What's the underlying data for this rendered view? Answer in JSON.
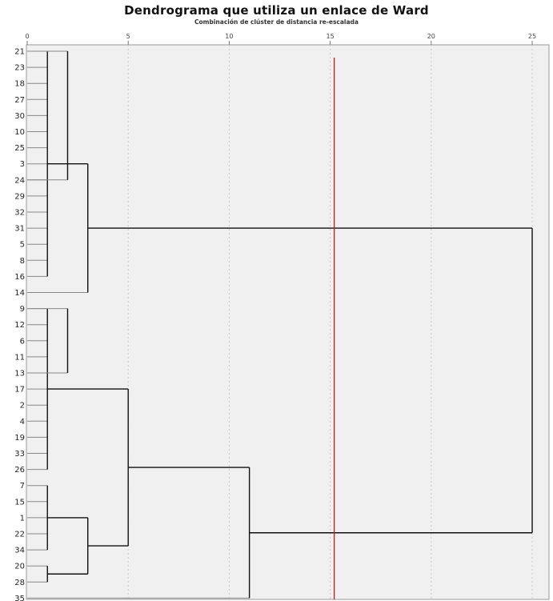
{
  "chart_data": {
    "type": "dendrogram",
    "title": "Dendrograma que utiliza un enlace de Ward",
    "subtitle": "Combinación de clúster de distancia re-escalada",
    "x_ticks": [
      0,
      5,
      10,
      15,
      20,
      25
    ],
    "x_tick_labels": [
      "0",
      "5",
      "10",
      "15",
      "20",
      "25"
    ],
    "xlim": [
      0,
      25
    ],
    "leaves": [
      "21",
      "23",
      "18",
      "27",
      "30",
      "10",
      "25",
      "3",
      "24",
      "29",
      "32",
      "31",
      "5",
      "8",
      "16",
      "14",
      "9",
      "12",
      "6",
      "11",
      "13",
      "17",
      "2",
      "4",
      "19",
      "33",
      "26",
      "7",
      "15",
      "1",
      "22",
      "34",
      "20",
      "28",
      "35"
    ],
    "merges": [
      {
        "members": [
          "21",
          "23",
          "18",
          "27",
          "30",
          "10",
          "25",
          "3",
          "24",
          "29",
          "32",
          "31",
          "5",
          "8",
          "16"
        ],
        "height": 1.0
      },
      {
        "members": [
          "9",
          "12",
          "6",
          "11",
          "13",
          "17",
          "2",
          "4",
          "19",
          "33",
          "26"
        ],
        "height": 1.0
      },
      {
        "members": [
          "7",
          "15",
          "1",
          "22",
          "34"
        ],
        "height": 1.0
      },
      {
        "members": [
          "20",
          "28"
        ],
        "height": 1.0
      },
      {
        "left": [
          "21",
          "23",
          "18",
          "27",
          "30",
          "10",
          "25",
          "3"
        ],
        "right": [
          "24",
          "29",
          "32",
          "31",
          "5",
          "8",
          "16"
        ],
        "height": 2.0
      },
      {
        "left": [
          "21",
          "23",
          "18",
          "27",
          "30",
          "10",
          "25",
          "3",
          "24",
          "29",
          "32",
          "31",
          "5",
          "8",
          "16"
        ],
        "right": [
          "14"
        ],
        "height": 3.0
      },
      {
        "left": [
          "9",
          "12",
          "6",
          "11"
        ],
        "right": [
          "13",
          "17",
          "2",
          "4",
          "19",
          "33",
          "26"
        ],
        "height": 2.0
      },
      {
        "left": [
          "7",
          "15",
          "1",
          "22",
          "34"
        ],
        "right": [
          "20",
          "28"
        ],
        "height": 3.0
      },
      {
        "left": [
          "9",
          "12",
          "6",
          "11",
          "13",
          "17",
          "2",
          "4",
          "19",
          "33",
          "26"
        ],
        "right": [
          "7",
          "15",
          "1",
          "22",
          "34",
          "20",
          "28"
        ],
        "height": 5.0
      },
      {
        "left": [
          "9",
          "12",
          "6",
          "11",
          "13",
          "17",
          "2",
          "4",
          "19",
          "33",
          "26",
          "7",
          "15",
          "1",
          "22",
          "34",
          "20",
          "28"
        ],
        "right": [
          "35"
        ],
        "height": 11.0
      },
      {
        "left": [
          "21",
          "23",
          "18",
          "27",
          "30",
          "10",
          "25",
          "3",
          "24",
          "29",
          "32",
          "31",
          "5",
          "8",
          "16",
          "14"
        ],
        "right": [
          "9",
          "12",
          "6",
          "11",
          "13",
          "17",
          "2",
          "4",
          "19",
          "33",
          "26",
          "7",
          "15",
          "1",
          "22",
          "34",
          "20",
          "28",
          "35"
        ],
        "height": 25.0
      }
    ],
    "cutoff_line": {
      "x": 15.2,
      "color": "#d11a1a"
    },
    "colors": {
      "background": "#f0f0f0",
      "link": "#111111",
      "leaf_line": "#888888",
      "grid": "#c8c8c8"
    }
  }
}
